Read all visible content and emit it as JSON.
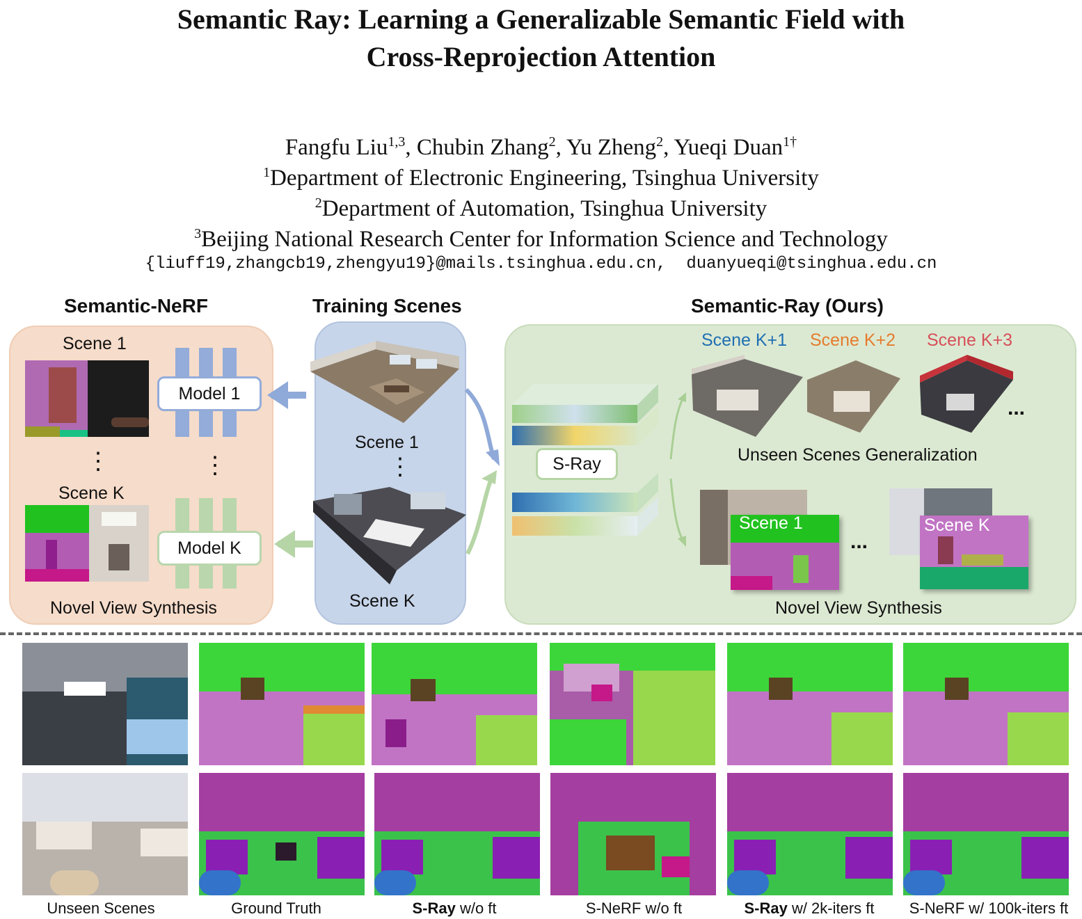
{
  "title_line1": "Semantic Ray: Learning a Generalizable Semantic Field with",
  "title_line2": "Cross-Reprojection Attention",
  "authors": {
    "a1": "Fangfu Liu",
    "a1_sup": "1,3",
    "a2": "Chubin Zhang",
    "a2_sup": "2",
    "a3": "Yu Zheng",
    "a3_sup": "2",
    "a4": "Yueqi Duan",
    "a4_sup": "1†"
  },
  "affiliations": [
    {
      "sup": "1",
      "text": "Department of Electronic Engineering, Tsinghua University"
    },
    {
      "sup": "2",
      "text": "Department of Automation, Tsinghua University"
    },
    {
      "sup": "3",
      "text": "Beijing National Research Center for Information Science and Technology"
    }
  ],
  "emails": "{liuff19,zhangcb19,zhengyu19}@mails.tsinghua.edu.cn,  duanyueqi@tsinghua.edu.cn",
  "figure": {
    "semantic_nerf": {
      "header": "Semantic-NeRF",
      "scene1": "Scene 1",
      "sceneK": "Scene K",
      "model1": "Model 1",
      "modelK": "Model K",
      "footer": "Novel View Synthesis",
      "dots": "⋮"
    },
    "training": {
      "header": "Training Scenes",
      "scene1": "Scene 1",
      "sceneK": "Scene K",
      "dots": "⋮"
    },
    "ours": {
      "header": "Semantic-Ray (Ours)",
      "k1": "Scene K+1",
      "k2": "Scene K+2",
      "k3": "Scene K+3",
      "ellipsis": "...",
      "unseen": "Unseen Scenes Generalization",
      "sray": "S-Ray",
      "nvs_scene1": "Scene 1",
      "nvs_sceneK": "Scene K",
      "nvs_footer": "Novel View Synthesis"
    },
    "colors": {
      "peach": "#f7dccb",
      "blue": "#c9d6ea",
      "green": "#dce8d2",
      "k1": "#1f6fb4",
      "k2": "#e47c2d",
      "k3": "#d6505a"
    }
  },
  "comparison": {
    "captions": [
      {
        "bold": "",
        "text": "Unseen Scenes"
      },
      {
        "bold": "",
        "text": "Ground Truth"
      },
      {
        "bold": "S-Ray",
        "text": " w/o ft"
      },
      {
        "bold": "",
        "text": "S-NeRF w/o ft"
      },
      {
        "bold": "S-Ray",
        "text": " w/ 2k-iters ft"
      },
      {
        "bold": "",
        "text": "S-NeRF w/ 100k-iters ft"
      }
    ]
  }
}
